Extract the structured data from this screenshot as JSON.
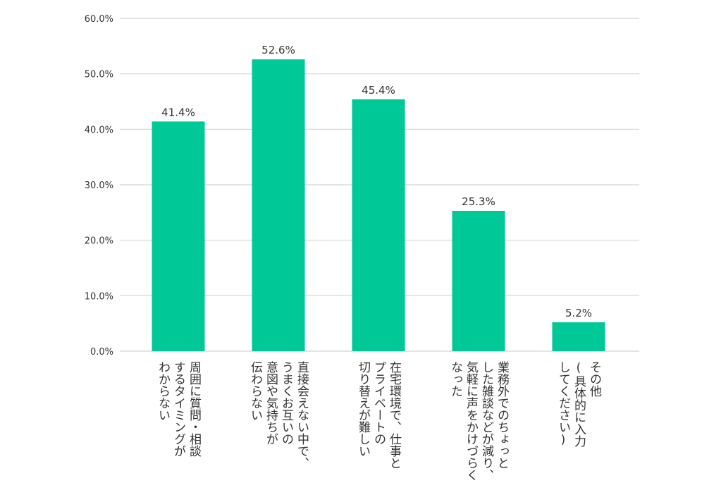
{
  "chart_data": {
    "type": "bar",
    "categories": [
      [
        "周囲に質問・相談",
        "するタイミングが",
        "わからない"
      ],
      [
        "直接会えない中で、",
        "うまくお互いの",
        "意図や気持ちが",
        "伝わらない"
      ],
      [
        "在宅環境で、仕事と",
        "プライベートの",
        "切り替えが難しい"
      ],
      [
        "業務外でのちょっと",
        "した雑談などが減り、",
        "気軽に声をかけづらく",
        "なった"
      ],
      [
        "その他",
        "(具体的に入力",
        "してください)"
      ]
    ],
    "values": [
      41.4,
      52.6,
      45.4,
      25.3,
      5.2
    ],
    "data_labels": [
      "41.4%",
      "52.6%",
      "45.4%",
      "25.3%",
      "5.2%"
    ],
    "yticks": [
      "0.0%",
      "10.0%",
      "20.0%",
      "30.0%",
      "40.0%",
      "50.0%",
      "60.0%"
    ],
    "ylim": [
      0,
      60
    ],
    "grid": true,
    "colors": {
      "bar": "#00c896",
      "grid": "#d4d4d4",
      "text": "#333333"
    }
  }
}
